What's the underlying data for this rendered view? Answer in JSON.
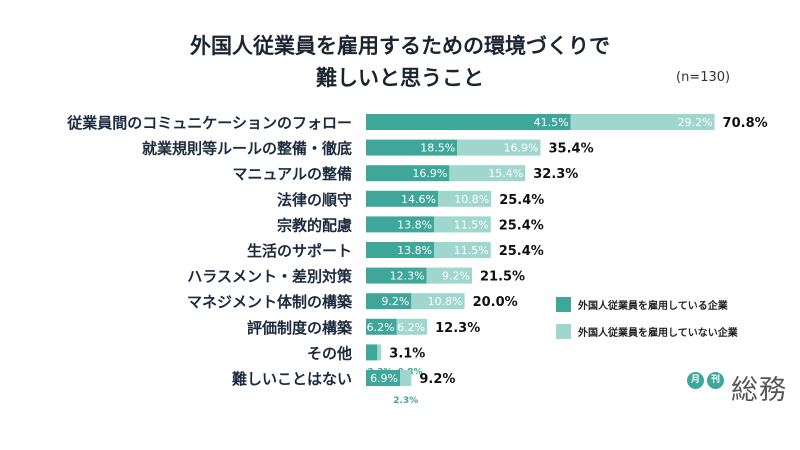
{
  "title_line1": "外国人従業員を雇用するための環境づくりで",
  "title_line2": "難しいと思うこと",
  "note": "(n=130)",
  "colors": {
    "series1": "#3fa79a",
    "series2": "#9fd6cd",
    "label": "#1b2a3c",
    "total": "#111111"
  },
  "logo": {
    "badge1": "月",
    "badge2": "刊",
    "name": "総務"
  },
  "chart_data": {
    "type": "bar",
    "orientation": "horizontal",
    "stacked": true,
    "categories": [
      "従業員間のコミュニケーションのフォロー",
      "就業規則等ルールの整備・徹底",
      "マニュアルの整備",
      "法律の順守",
      "宗教的配慮",
      "生活のサポート",
      "ハラスメント・差別対策",
      "マネジメント体制の構築",
      "評価制度の構築",
      "その他",
      "難しいことはない"
    ],
    "series": [
      {
        "name": "外国人従業員を雇用している企業",
        "values": [
          41.5,
          18.5,
          16.9,
          14.6,
          13.8,
          13.8,
          12.3,
          9.2,
          6.2,
          2.3,
          6.9
        ]
      },
      {
        "name": "外国人従業員を雇用していない企業",
        "values": [
          29.2,
          16.9,
          15.4,
          10.8,
          11.5,
          11.5,
          9.2,
          10.8,
          6.2,
          0.8,
          2.3
        ]
      }
    ],
    "totals": [
      70.8,
      35.4,
      32.3,
      25.4,
      25.4,
      25.4,
      21.5,
      20.0,
      12.3,
      3.1,
      9.2
    ],
    "value_format": "%",
    "xlim": [
      0,
      100
    ],
    "legend_position": "right"
  }
}
